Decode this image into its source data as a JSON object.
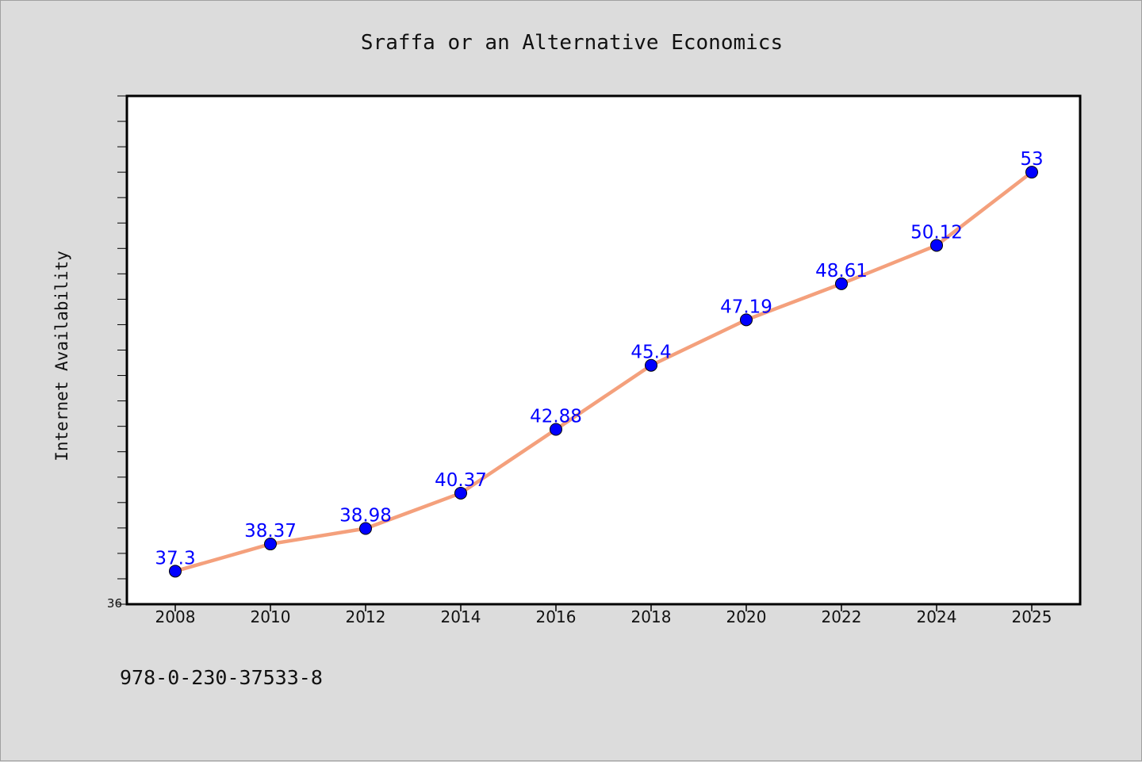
{
  "chart_data": {
    "type": "line",
    "title": "Sraffa or an Alternative Economics",
    "xlabel": "",
    "ylabel": "Internet Availability",
    "x": [
      "2008",
      "2010",
      "2012",
      "2014",
      "2016",
      "2018",
      "2020",
      "2022",
      "2024",
      "2025"
    ],
    "series": [
      {
        "values": [
          37.3,
          38.37,
          38.98,
          40.37,
          42.88,
          45.4,
          47.19,
          48.61,
          50.12,
          53
        ],
        "data_labels": [
          "37.3",
          "38.37",
          "38.98",
          "40.37",
          "42.88",
          "45.4",
          "47.19",
          "48.61",
          "50.12",
          "53"
        ],
        "line_color": "#f4a07c",
        "marker_color": "#0000ff",
        "label_color": "#0000ff"
      }
    ],
    "ylim": [
      36,
      56
    ],
    "ytick_labels": [
      "36"
    ],
    "grid": false,
    "legend": "none"
  },
  "footer": {
    "isbn": "978-0-230-37533-8"
  },
  "colors": {
    "page_background": "#dcdcdc",
    "plot_background": "#ffffff",
    "axis": "#000000"
  }
}
